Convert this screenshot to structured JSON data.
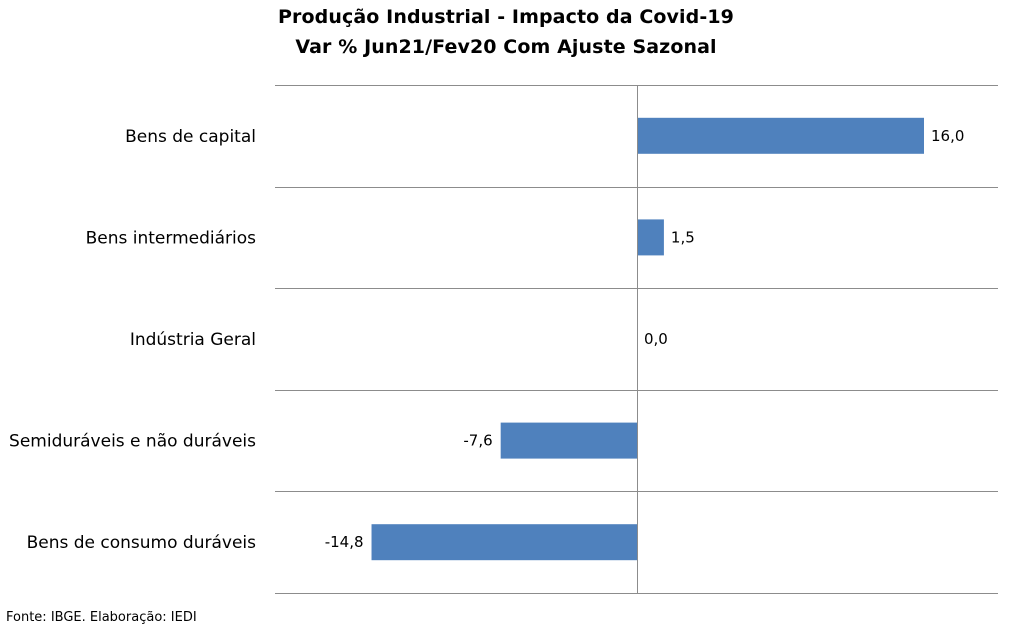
{
  "chart_data": {
    "type": "bar",
    "orientation": "horizontal",
    "title": "Produção Industrial - Impacto da Covid-19",
    "subtitle": "Var % Jun21/Fev20 Com Ajuste Sazonal",
    "categories": [
      "Bens de capital",
      "Bens intermediários",
      "Indústria Geral",
      "Semiduráveis e não duráveis",
      "Bens de consumo duráveis"
    ],
    "values": [
      16.0,
      1.5,
      0.0,
      -7.6,
      -14.8
    ],
    "value_labels": [
      "16,0",
      "1,5",
      "0,0",
      "-7,6",
      "-14,8"
    ],
    "xlim": [
      -20,
      20
    ],
    "grid": "horizontal separators",
    "bar_color": "#4f81bd"
  },
  "footer": {
    "source": "Fonte: IBGE. Elaboração: IEDI"
  }
}
